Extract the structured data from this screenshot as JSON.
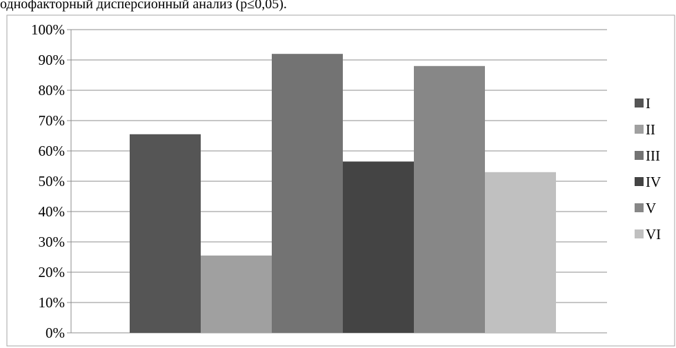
{
  "caption": "однофакторный дисперсионный анализ (p≤0,05).",
  "chart_data": {
    "type": "bar",
    "title": "",
    "xlabel": "",
    "ylabel": "",
    "ylim": [
      0,
      100
    ],
    "yticks": [
      "0%",
      "10%",
      "20%",
      "30%",
      "40%",
      "50%",
      "60%",
      "70%",
      "80%",
      "90%",
      "100%"
    ],
    "grid": true,
    "legend_position": "right",
    "series": [
      {
        "name": "I",
        "value": 65.5,
        "color": "#555555"
      },
      {
        "name": "II",
        "value": 25.5,
        "color": "#a0a0a0"
      },
      {
        "name": "III",
        "value": 92.0,
        "color": "#737373"
      },
      {
        "name": "IV",
        "value": 56.5,
        "color": "#444444"
      },
      {
        "name": "V",
        "value": 88.0,
        "color": "#878787"
      },
      {
        "name": "VI",
        "value": 53.0,
        "color": "#c0c0c0"
      }
    ]
  }
}
